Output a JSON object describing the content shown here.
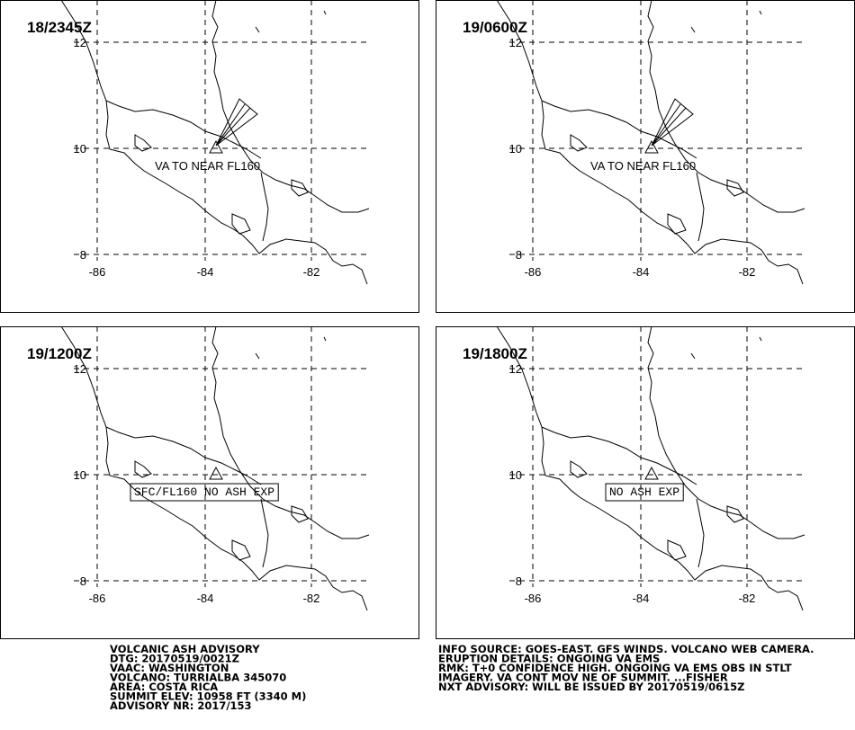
{
  "panels": [
    {
      "time": "18/2345Z",
      "annotation": "VA TO NEAR FL160"
    },
    {
      "time": "19/0600Z",
      "annotation": "VA TO NEAR FL160"
    },
    {
      "time": "19/1200Z",
      "annotation": "SFC/FL160 NO ASH EXP"
    },
    {
      "time": "19/1800Z",
      "annotation": "NO ASH EXP"
    }
  ],
  "lat_labels": [
    12,
    10,
    8
  ],
  "lon_labels": [
    -86,
    -84,
    -82
  ],
  "advisory_left": [
    "VOLCANIC ASH ADVISORY",
    "DTG: 20170519/0021Z",
    "VAAC: WASHINGTON",
    "VOLCANO: TURRIALBA 345070",
    "AREA: COSTA RICA",
    "SUMMIT ELEV: 10958 FT (3340 M)",
    "ADVISORY NR: 2017/153"
  ],
  "advisory_right": [
    "INFO SOURCE: GOES-EAST. GFS WINDS. VOLCANO WEB CAMERA.",
    "ERUPTION DETAILS: ONGOING VA EMS",
    "RMK: T+0 CONFIDENCE HIGH. ONGOING VA EMS OBS IN STLT",
    "IMAGERY. VA CONT MOV NE OF SUMMIT. ...FISHER",
    "NXT ADVISORY: WILL BE ISSUED BY 20170519/0615Z"
  ]
}
